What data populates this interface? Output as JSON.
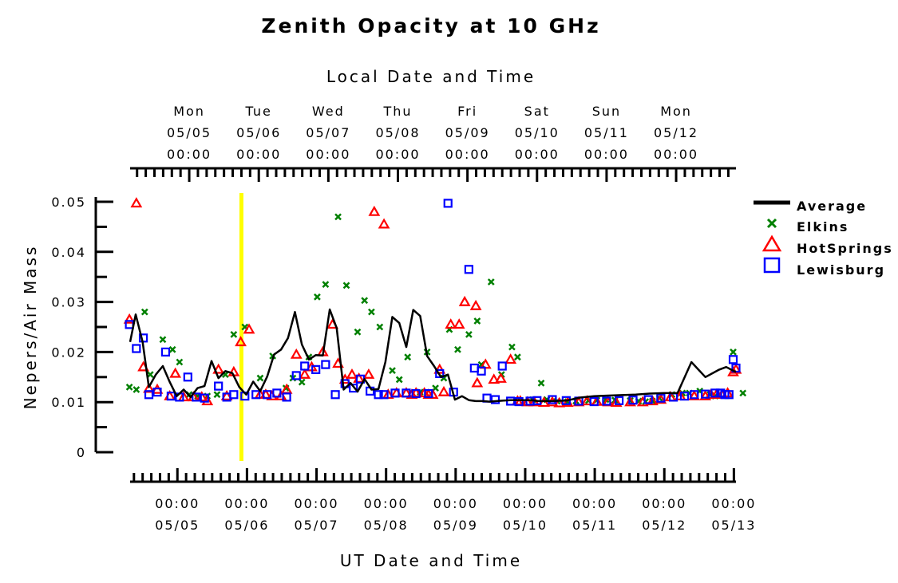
{
  "chart_data": {
    "type": "scatter",
    "title": "Zenith Opacity at 10 GHz",
    "ylabel": "Nepers/Air Mass",
    "xlabel_bottom": "UT Date and Time",
    "xlabel_top": "Local Date and Time",
    "ylim": [
      0,
      0.05
    ],
    "yticks": [
      0,
      0.01,
      0.02,
      0.03,
      0.04,
      0.05
    ],
    "ytick_labels": [
      "0",
      "0.01",
      "0.02",
      "0.03",
      "0.04",
      "0.05"
    ],
    "x_unit": "days after 05/04 00:00 UT",
    "xlim": [
      0.01,
      8.72
    ],
    "bottom_ticks": [
      {
        "x": 0.69,
        "time": "00:00",
        "date": "05/05"
      },
      {
        "x": 1.69,
        "time": "00:00",
        "date": "05/06"
      },
      {
        "x": 2.69,
        "time": "00:00",
        "date": "05/07"
      },
      {
        "x": 3.69,
        "time": "00:00",
        "date": "05/08"
      },
      {
        "x": 4.69,
        "time": "00:00",
        "date": "05/09"
      },
      {
        "x": 5.69,
        "time": "00:00",
        "date": "05/10"
      },
      {
        "x": 6.69,
        "time": "00:00",
        "date": "05/11"
      },
      {
        "x": 7.69,
        "time": "00:00",
        "date": "05/12"
      },
      {
        "x": 8.69,
        "time": "00:00",
        "date": "05/13"
      }
    ],
    "top_ticks": [
      {
        "x": 0.86,
        "day": "Mon",
        "date": "05/05",
        "time": "00:00"
      },
      {
        "x": 1.86,
        "day": "Tue",
        "date": "05/06",
        "time": "00:00"
      },
      {
        "x": 2.86,
        "day": "Wed",
        "date": "05/07",
        "time": "00:00"
      },
      {
        "x": 3.86,
        "day": "Thu",
        "date": "05/08",
        "time": "00:00"
      },
      {
        "x": 4.86,
        "day": "Fri",
        "date": "05/09",
        "time": "00:00"
      },
      {
        "x": 5.86,
        "day": "Sat",
        "date": "05/10",
        "time": "00:00"
      },
      {
        "x": 6.86,
        "day": "Sun",
        "date": "05/11",
        "time": "00:00"
      },
      {
        "x": 7.86,
        "day": "Mon",
        "date": "05/12",
        "time": "00:00"
      }
    ],
    "current_time_marker": {
      "x": 1.61,
      "color": "#ffff00"
    },
    "legend_position": "right",
    "series": [
      {
        "name": "Average",
        "marker": "line",
        "color": "#000000",
        "x": [
          0.01,
          0.09,
          0.19,
          0.28,
          0.38,
          0.48,
          0.58,
          0.68,
          0.78,
          0.88,
          0.98,
          1.08,
          1.18,
          1.28,
          1.38,
          1.48,
          1.58,
          1.68,
          1.78,
          1.88,
          1.98,
          2.08,
          2.18,
          2.28,
          2.38,
          2.48,
          2.58,
          2.68,
          2.78,
          2.88,
          2.98,
          3.08,
          3.18,
          3.28,
          3.38,
          3.48,
          3.58,
          3.68,
          3.78,
          3.88,
          3.98,
          4.08,
          4.18,
          4.28,
          4.38,
          4.48,
          4.58,
          4.68,
          4.78,
          4.88,
          4.98,
          5.08,
          5.18,
          5.28,
          5.38,
          5.48,
          5.58,
          5.68,
          5.78,
          5.88,
          6.08,
          6.28,
          6.48,
          6.68,
          6.88,
          7.08,
          7.28,
          7.48,
          7.68,
          7.88,
          8.08,
          8.28,
          8.48,
          8.58,
          8.65,
          8.72
        ],
        "y": [
          0.022,
          0.0275,
          0.022,
          0.013,
          0.0155,
          0.0172,
          0.014,
          0.0112,
          0.0125,
          0.011,
          0.0128,
          0.0132,
          0.0182,
          0.0148,
          0.0162,
          0.0158,
          0.013,
          0.0115,
          0.0141,
          0.0122,
          0.0151,
          0.0195,
          0.0205,
          0.0228,
          0.028,
          0.0215,
          0.0185,
          0.0194,
          0.0193,
          0.0285,
          0.0248,
          0.0125,
          0.0138,
          0.0121,
          0.0146,
          0.0125,
          0.0126,
          0.018,
          0.027,
          0.0258,
          0.021,
          0.0284,
          0.0272,
          0.0192,
          0.0172,
          0.015,
          0.0155,
          0.0105,
          0.0112,
          0.0104,
          0.0102,
          0.0102,
          0.0101,
          0.0102,
          0.0103,
          0.0104,
          0.0104,
          0.0104,
          0.0104,
          0.0102,
          0.0102,
          0.0103,
          0.0109,
          0.0112,
          0.0113,
          0.0114,
          0.0115,
          0.0117,
          0.0118,
          0.0118,
          0.018,
          0.015,
          0.0165,
          0.017,
          0.0165,
          0.016
        ]
      },
      {
        "name": "Elkins",
        "marker": "x",
        "color": "#008000",
        "x": [
          0.0,
          0.1,
          0.22,
          0.3,
          0.48,
          0.62,
          0.72,
          0.86,
          0.98,
          1.12,
          1.26,
          1.38,
          1.5,
          1.66,
          1.88,
          2.06,
          2.25,
          2.35,
          2.48,
          2.58,
          2.7,
          2.82,
          3.0,
          3.12,
          3.28,
          3.38,
          3.48,
          3.6,
          3.78,
          3.88,
          4.0,
          4.18,
          4.28,
          4.4,
          4.52,
          4.6,
          4.72,
          4.88,
          5.0,
          5.06,
          5.2,
          5.35,
          5.5,
          5.58,
          5.8,
          5.92,
          6.0,
          6.15,
          6.3,
          6.42,
          6.6,
          6.72,
          6.85,
          6.98,
          7.2,
          7.32,
          7.42,
          7.52,
          7.62,
          7.8,
          7.95,
          8.05,
          8.2,
          8.35,
          8.42,
          8.68,
          8.82
        ],
        "y": [
          0.013,
          0.0125,
          0.028,
          0.0155,
          0.0225,
          0.0205,
          0.018,
          0.0115,
          0.0112,
          0.0112,
          0.0115,
          0.0155,
          0.0235,
          0.025,
          0.0148,
          0.0192,
          0.0128,
          0.0148,
          0.014,
          0.019,
          0.031,
          0.0335,
          0.047,
          0.0333,
          0.024,
          0.0303,
          0.028,
          0.025,
          0.0163,
          0.0145,
          0.019,
          0.012,
          0.02,
          0.0128,
          0.0148,
          0.0245,
          0.0205,
          0.0235,
          0.0262,
          0.0175,
          0.034,
          0.0155,
          0.021,
          0.019,
          0.0105,
          0.0138,
          0.0105,
          0.0102,
          0.0101,
          0.0102,
          0.0103,
          0.0104,
          0.0105,
          0.0104,
          0.0103,
          0.0102,
          0.0101,
          0.0102,
          0.0108,
          0.0115,
          0.0118,
          0.0118,
          0.0122,
          0.0115,
          0.0112,
          0.02,
          0.0118
        ]
      },
      {
        "name": "HotSprings",
        "marker": "triangle",
        "color": "#ff0000",
        "x": [
          0.0,
          0.1,
          0.2,
          0.28,
          0.4,
          0.58,
          0.66,
          0.78,
          0.92,
          1.04,
          1.12,
          1.28,
          1.4,
          1.5,
          1.6,
          1.72,
          1.88,
          1.96,
          2.05,
          2.18,
          2.26,
          2.4,
          2.52,
          2.62,
          2.78,
          2.92,
          3.0,
          3.1,
          3.2,
          3.3,
          3.44,
          3.52,
          3.66,
          3.72,
          3.84,
          3.98,
          4.06,
          4.12,
          4.24,
          4.3,
          4.36,
          4.46,
          4.52,
          4.62,
          4.74,
          4.82,
          4.98,
          5.0,
          5.12,
          5.24,
          5.34,
          5.48,
          5.58,
          5.62,
          5.72,
          5.82,
          5.96,
          6.08,
          6.18,
          6.3,
          6.46,
          6.58,
          6.72,
          6.88,
          7.0,
          7.2,
          7.38,
          7.52,
          7.64,
          7.78,
          7.92,
          8.12,
          8.28,
          8.36,
          8.44,
          8.52,
          8.6,
          8.68,
          8.72
        ],
        "y": [
          0.0265,
          0.0497,
          0.017,
          0.0127,
          0.0125,
          0.0112,
          0.0157,
          0.011,
          0.011,
          0.011,
          0.0102,
          0.0165,
          0.0112,
          0.016,
          0.022,
          0.0245,
          0.0115,
          0.0115,
          0.0112,
          0.0112,
          0.0125,
          0.0195,
          0.0155,
          0.017,
          0.02,
          0.0255,
          0.0177,
          0.0145,
          0.0155,
          0.0147,
          0.0155,
          0.048,
          0.0455,
          0.0115,
          0.0118,
          0.0118,
          0.0115,
          0.0118,
          0.0118,
          0.0115,
          0.0115,
          0.0165,
          0.012,
          0.0255,
          0.0255,
          0.03,
          0.0292,
          0.0138,
          0.0175,
          0.0145,
          0.0147,
          0.0185,
          0.0102,
          0.0102,
          0.01,
          0.01,
          0.0099,
          0.01,
          0.0098,
          0.0099,
          0.01,
          0.0102,
          0.0101,
          0.01,
          0.0099,
          0.01,
          0.01,
          0.0102,
          0.0105,
          0.011,
          0.0112,
          0.0112,
          0.0112,
          0.0115,
          0.0115,
          0.0115,
          0.0118,
          0.016,
          0.0165
        ]
      },
      {
        "name": "Lewisburg",
        "marker": "square",
        "color": "#0000ff",
        "x": [
          0.0,
          0.1,
          0.2,
          0.28,
          0.4,
          0.52,
          0.6,
          0.72,
          0.84,
          0.96,
          1.08,
          1.28,
          1.4,
          1.5,
          1.66,
          1.82,
          1.98,
          2.12,
          2.26,
          2.4,
          2.52,
          2.68,
          2.82,
          2.96,
          3.1,
          3.22,
          3.32,
          3.46,
          3.58,
          3.66,
          3.82,
          3.98,
          4.12,
          4.3,
          4.46,
          4.58,
          4.66,
          4.88,
          4.96,
          5.06,
          5.14,
          5.26,
          5.36,
          5.48,
          5.6,
          5.76,
          5.86,
          6.08,
          6.28,
          6.46,
          6.68,
          6.86,
          7.04,
          7.24,
          7.46,
          7.64,
          7.82,
          7.98,
          8.12,
          8.28,
          8.42,
          8.5,
          8.56,
          8.62,
          8.68,
          8.72
        ],
        "y": [
          0.0255,
          0.0207,
          0.0228,
          0.0115,
          0.012,
          0.02,
          0.0112,
          0.011,
          0.015,
          0.011,
          0.0108,
          0.0132,
          0.011,
          0.0115,
          0.0112,
          0.0115,
          0.0115,
          0.0118,
          0.011,
          0.0153,
          0.0172,
          0.0165,
          0.0175,
          0.0115,
          0.0137,
          0.0128,
          0.0146,
          0.0122,
          0.0115,
          0.0115,
          0.0118,
          0.0118,
          0.0117,
          0.0117,
          0.0157,
          0.0497,
          0.012,
          0.0365,
          0.0168,
          0.0162,
          0.0108,
          0.0105,
          0.0172,
          0.0102,
          0.0101,
          0.0102,
          0.0103,
          0.0105,
          0.0103,
          0.0102,
          0.0101,
          0.0102,
          0.0103,
          0.0104,
          0.0105,
          0.0108,
          0.011,
          0.0112,
          0.0115,
          0.0116,
          0.0118,
          0.0118,
          0.0115,
          0.0115,
          0.0185,
          0.0168
        ]
      }
    ]
  }
}
